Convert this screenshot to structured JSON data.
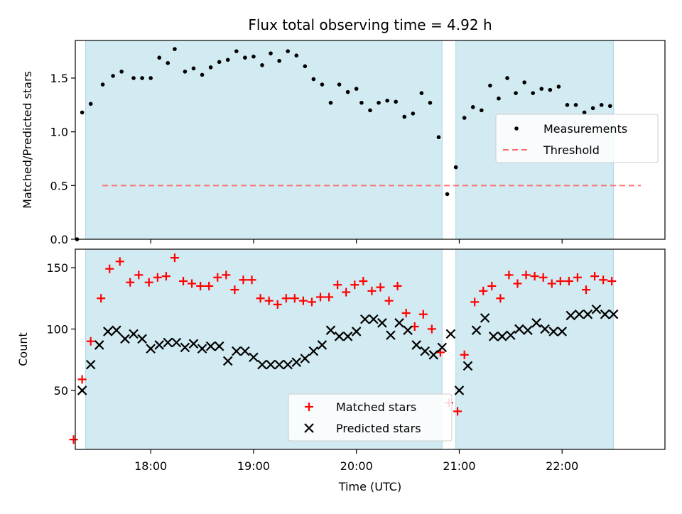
{
  "chart_data": [
    {
      "type": "scatter",
      "title": "Flux total observing time = 4.92 h",
      "xlabel": "",
      "ylabel": "Matched/Predicted stars",
      "xlim": [
        "17:16",
        "23:00"
      ],
      "ylim": [
        0,
        1.85
      ],
      "yticks": [
        "0.0",
        "0.5",
        "1.0",
        "1.5"
      ],
      "threshold": 0.5,
      "shaded_intervals": [
        [
          "17:22",
          "20:50"
        ],
        [
          "20:58",
          "22:30"
        ]
      ],
      "legend": {
        "placement": "center-right",
        "entries": [
          "Measurements",
          "Threshold"
        ]
      },
      "series": [
        {
          "name": "Measurements",
          "points": [
            [
              "17:17",
              0.0
            ],
            [
              "17:20",
              1.18
            ],
            [
              "17:25",
              1.26
            ],
            [
              "17:32",
              1.44
            ],
            [
              "17:38",
              1.52
            ],
            [
              "17:43",
              1.56
            ],
            [
              "17:50",
              1.5
            ],
            [
              "17:55",
              1.5
            ],
            [
              "18:00",
              1.5
            ],
            [
              "18:05",
              1.69
            ],
            [
              "18:10",
              1.64
            ],
            [
              "18:14",
              1.77
            ],
            [
              "18:20",
              1.56
            ],
            [
              "18:25",
              1.59
            ],
            [
              "18:30",
              1.53
            ],
            [
              "18:35",
              1.6
            ],
            [
              "18:40",
              1.65
            ],
            [
              "18:45",
              1.67
            ],
            [
              "18:50",
              1.75
            ],
            [
              "18:55",
              1.69
            ],
            [
              "19:00",
              1.7
            ],
            [
              "19:05",
              1.62
            ],
            [
              "19:10",
              1.73
            ],
            [
              "19:15",
              1.66
            ],
            [
              "19:20",
              1.75
            ],
            [
              "19:25",
              1.71
            ],
            [
              "19:30",
              1.61
            ],
            [
              "19:35",
              1.49
            ],
            [
              "19:40",
              1.44
            ],
            [
              "19:45",
              1.27
            ],
            [
              "19:50",
              1.44
            ],
            [
              "19:55",
              1.37
            ],
            [
              "20:00",
              1.4
            ],
            [
              "20:03",
              1.27
            ],
            [
              "20:08",
              1.2
            ],
            [
              "20:13",
              1.27
            ],
            [
              "20:18",
              1.29
            ],
            [
              "20:23",
              1.28
            ],
            [
              "20:28",
              1.14
            ],
            [
              "20:33",
              1.17
            ],
            [
              "20:38",
              1.36
            ],
            [
              "20:43",
              1.27
            ],
            [
              "20:48",
              0.95
            ],
            [
              "20:53",
              0.42
            ],
            [
              "20:58",
              0.67
            ],
            [
              "21:03",
              1.13
            ],
            [
              "21:08",
              1.23
            ],
            [
              "21:13",
              1.2
            ],
            [
              "21:18",
              1.43
            ],
            [
              "21:23",
              1.31
            ],
            [
              "21:28",
              1.5
            ],
            [
              "21:33",
              1.36
            ],
            [
              "21:38",
              1.46
            ],
            [
              "21:43",
              1.36
            ],
            [
              "21:48",
              1.4
            ],
            [
              "21:53",
              1.39
            ],
            [
              "21:58",
              1.42
            ],
            [
              "22:03",
              1.25
            ],
            [
              "22:08",
              1.25
            ],
            [
              "22:13",
              1.18
            ],
            [
              "22:18",
              1.22
            ],
            [
              "22:23",
              1.25
            ],
            [
              "22:28",
              1.24
            ]
          ]
        },
        {
          "name": "Threshold",
          "y": 0.5
        }
      ]
    },
    {
      "type": "scatter",
      "title": "",
      "xlabel": "Time (UTC)",
      "ylabel": "Count",
      "xlim": [
        "17:16",
        "23:00"
      ],
      "ylim": [
        2,
        165
      ],
      "yticks": [
        "50",
        "100",
        "150"
      ],
      "xticks": [
        "18:00",
        "19:00",
        "20:00",
        "21:00",
        "22:00"
      ],
      "shaded_intervals": [
        [
          "17:22",
          "20:50"
        ],
        [
          "20:58",
          "22:30"
        ]
      ],
      "legend": {
        "placement": "bottom-center",
        "entries": [
          "Matched stars",
          "Predicted stars"
        ]
      },
      "series": [
        {
          "name": "Matched stars",
          "points": [
            [
              "17:15",
              10
            ],
            [
              "17:20",
              59
            ],
            [
              "17:25",
              90
            ],
            [
              "17:31",
              125
            ],
            [
              "17:36",
              149
            ],
            [
              "17:42",
              155
            ],
            [
              "17:48",
              138
            ],
            [
              "17:53",
              144
            ],
            [
              "17:59",
              138
            ],
            [
              "18:04",
              142
            ],
            [
              "18:09",
              143
            ],
            [
              "18:14",
              158
            ],
            [
              "18:19",
              139
            ],
            [
              "18:24",
              137
            ],
            [
              "18:29",
              135
            ],
            [
              "18:34",
              135
            ],
            [
              "18:39",
              142
            ],
            [
              "18:44",
              144
            ],
            [
              "18:49",
              132
            ],
            [
              "18:54",
              140
            ],
            [
              "18:59",
              140
            ],
            [
              "19:04",
              125
            ],
            [
              "19:09",
              123
            ],
            [
              "19:14",
              120
            ],
            [
              "19:19",
              125
            ],
            [
              "19:24",
              125
            ],
            [
              "19:29",
              123
            ],
            [
              "19:34",
              122
            ],
            [
              "19:39",
              126
            ],
            [
              "19:44",
              126
            ],
            [
              "19:49",
              136
            ],
            [
              "19:54",
              130
            ],
            [
              "19:59",
              136
            ],
            [
              "20:04",
              139
            ],
            [
              "20:09",
              131
            ],
            [
              "20:14",
              134
            ],
            [
              "20:19",
              123
            ],
            [
              "20:24",
              135
            ],
            [
              "20:29",
              113
            ],
            [
              "20:34",
              102
            ],
            [
              "20:39",
              112
            ],
            [
              "20:44",
              100
            ],
            [
              "20:49",
              81
            ],
            [
              "20:54",
              40
            ],
            [
              "20:59",
              33
            ],
            [
              "21:03",
              79
            ],
            [
              "21:09",
              122
            ],
            [
              "21:14",
              131
            ],
            [
              "21:19",
              135
            ],
            [
              "21:24",
              125
            ],
            [
              "21:29",
              144
            ],
            [
              "21:34",
              137
            ],
            [
              "21:39",
              144
            ],
            [
              "21:44",
              143
            ],
            [
              "21:49",
              142
            ],
            [
              "21:54",
              137
            ],
            [
              "21:59",
              139
            ],
            [
              "22:04",
              139
            ],
            [
              "22:09",
              142
            ],
            [
              "22:14",
              132
            ],
            [
              "22:19",
              143
            ],
            [
              "22:24",
              140
            ],
            [
              "22:29",
              139
            ]
          ]
        },
        {
          "name": "Predicted stars",
          "points": [
            [
              "17:20",
              50
            ],
            [
              "17:25",
              71
            ],
            [
              "17:30",
              87
            ],
            [
              "17:35",
              98
            ],
            [
              "17:40",
              99
            ],
            [
              "17:45",
              92
            ],
            [
              "17:50",
              96
            ],
            [
              "17:55",
              92
            ],
            [
              "18:00",
              84
            ],
            [
              "18:05",
              87
            ],
            [
              "18:10",
              89
            ],
            [
              "18:15",
              89
            ],
            [
              "18:20",
              85
            ],
            [
              "18:25",
              88
            ],
            [
              "18:30",
              84
            ],
            [
              "18:35",
              86
            ],
            [
              "18:40",
              86
            ],
            [
              "18:45",
              74
            ],
            [
              "18:50",
              82
            ],
            [
              "18:55",
              82
            ],
            [
              "19:00",
              77
            ],
            [
              "19:05",
              71
            ],
            [
              "19:10",
              71
            ],
            [
              "19:15",
              71
            ],
            [
              "19:20",
              71
            ],
            [
              "19:25",
              73
            ],
            [
              "19:30",
              76
            ],
            [
              "19:35",
              82
            ],
            [
              "19:40",
              87
            ],
            [
              "19:45",
              99
            ],
            [
              "19:50",
              94
            ],
            [
              "19:55",
              94
            ],
            [
              "20:00",
              98
            ],
            [
              "20:05",
              108
            ],
            [
              "20:10",
              108
            ],
            [
              "20:15",
              105
            ],
            [
              "20:20",
              95
            ],
            [
              "20:25",
              105
            ],
            [
              "20:30",
              99
            ],
            [
              "20:35",
              87
            ],
            [
              "20:40",
              82
            ],
            [
              "20:45",
              79
            ],
            [
              "20:50",
              85
            ],
            [
              "20:55",
              96
            ],
            [
              "21:00",
              50
            ],
            [
              "21:05",
              70
            ],
            [
              "21:10",
              99
            ],
            [
              "21:15",
              109
            ],
            [
              "21:20",
              94
            ],
            [
              "21:25",
              94
            ],
            [
              "21:30",
              95
            ],
            [
              "21:35",
              100
            ],
            [
              "21:40",
              99
            ],
            [
              "21:45",
              105
            ],
            [
              "21:50",
              100
            ],
            [
              "21:55",
              98
            ],
            [
              "22:00",
              98
            ],
            [
              "22:05",
              111
            ],
            [
              "22:10",
              112
            ],
            [
              "22:15",
              112
            ],
            [
              "22:20",
              116
            ],
            [
              "22:25",
              112
            ],
            [
              "22:30",
              112
            ]
          ]
        }
      ]
    }
  ],
  "colors": {
    "shade": "#add8e6",
    "threshold": "#ff6666",
    "matched": "#ff0000",
    "predicted": "#000000",
    "measurements": "#000000"
  }
}
